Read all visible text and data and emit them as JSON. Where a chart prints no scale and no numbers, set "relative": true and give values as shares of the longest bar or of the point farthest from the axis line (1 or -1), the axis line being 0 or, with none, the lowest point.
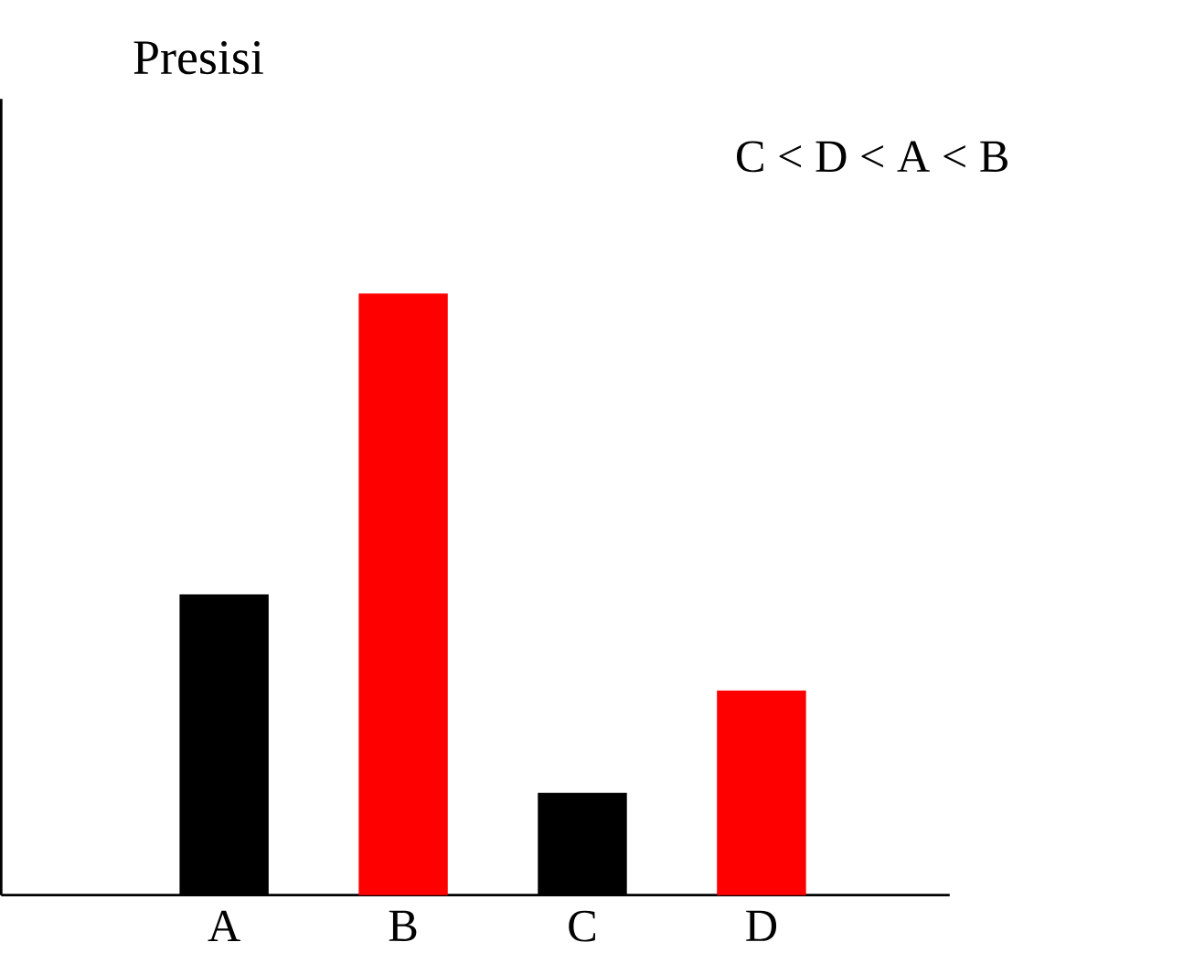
{
  "chart_data": {
    "type": "bar",
    "relative": true,
    "ylabel": "Presisi",
    "categories": [
      "A",
      "B",
      "C",
      "D"
    ],
    "values": [
      0.5,
      1,
      0.17,
      0.34
    ],
    "colors": [
      "#000000",
      "#ff0000",
      "#000000",
      "#ff0000"
    ],
    "annotations": [
      "C < D < A < B"
    ]
  }
}
